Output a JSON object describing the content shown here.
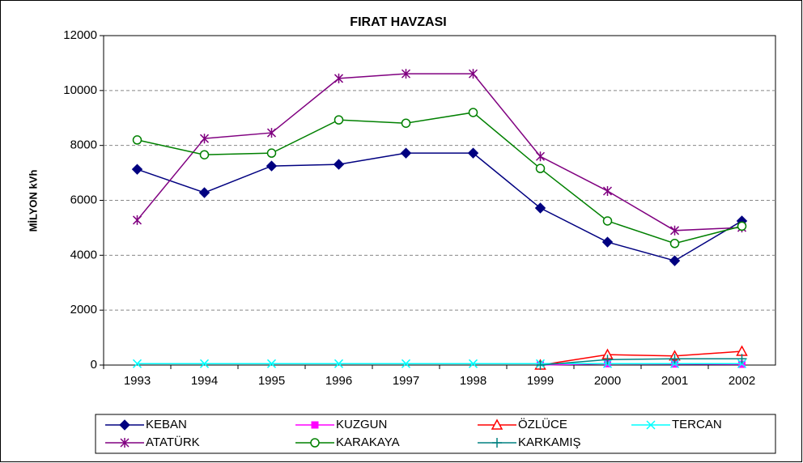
{
  "chart_data": {
    "type": "line",
    "title": "FIRAT HAVZASI",
    "y_label": "MİLYON kVh",
    "categories": [
      "1993",
      "1994",
      "1995",
      "1996",
      "1997",
      "1998",
      "1999",
      "2000",
      "2001",
      "2002"
    ],
    "ylim": [
      0,
      12000
    ],
    "yticks": [
      0,
      2000,
      4000,
      6000,
      8000,
      10000,
      12000
    ],
    "grid": true,
    "series": [
      {
        "name": "KEBAN",
        "color": "#000080",
        "marker": "diamond",
        "values": [
          7130,
          6280,
          7250,
          7310,
          7720,
          7720,
          5720,
          4480,
          3800,
          5250
        ]
      },
      {
        "name": "KUZGUN",
        "color": "#ff00ff",
        "marker": "square",
        "values": [
          null,
          null,
          null,
          null,
          null,
          null,
          0,
          50,
          40,
          30
        ]
      },
      {
        "name": "ÖZLÜCE",
        "color": "#ff0000",
        "marker": "triangle",
        "values": [
          null,
          null,
          null,
          null,
          null,
          null,
          0,
          380,
          330,
          500
        ]
      },
      {
        "name": "TERCAN",
        "color": "#00ffff",
        "marker": "x",
        "values": [
          50,
          50,
          50,
          50,
          50,
          50,
          50,
          50,
          50,
          50
        ]
      },
      {
        "name": "ATATÜRK",
        "color": "#800080",
        "marker": "star",
        "values": [
          5280,
          8250,
          8460,
          10440,
          10610,
          10610,
          7600,
          6340,
          4900,
          5010
        ]
      },
      {
        "name": "KARAKAYA",
        "color": "#008000",
        "marker": "circle",
        "values": [
          8200,
          7660,
          7720,
          8930,
          8810,
          9200,
          7160,
          5250,
          4430,
          5060
        ]
      },
      {
        "name": "KARKAMIŞ",
        "color": "#008080",
        "marker": "plus",
        "values": [
          null,
          null,
          null,
          null,
          null,
          null,
          0,
          200,
          230,
          230
        ]
      }
    ]
  }
}
